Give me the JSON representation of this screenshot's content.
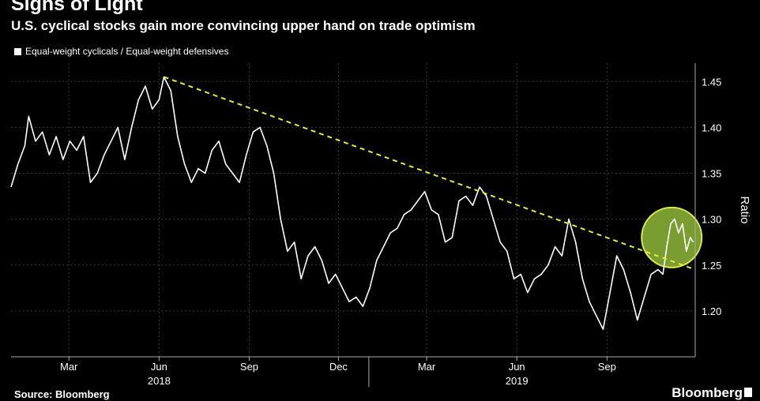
{
  "title": "Signs of Light",
  "subtitle": "U.S. cyclical stocks gain more convincing upper hand on trade optimism",
  "source": "Source: Bloomberg",
  "brand": "Bloomberg",
  "colors": {
    "background": "#000000",
    "series": "#ffffff",
    "trendline": "#e8e83a",
    "highlight_fill": "#8fb83a",
    "highlight_stroke": "#d8e84a"
  },
  "chart_data": {
    "type": "line",
    "ylabel": "Ratio",
    "xlabel": "",
    "ylim": [
      1.15,
      1.47
    ],
    "y_ticks": [
      1.2,
      1.25,
      1.3,
      1.35,
      1.4,
      1.45
    ],
    "y_tick_labels": [
      "1.20",
      "1.25",
      "1.30",
      "1.35",
      "1.40",
      "1.45"
    ],
    "grid": true,
    "legend_position": "top-left",
    "x_range": [
      "2018-01-01",
      "2019-11-30"
    ],
    "x_ticks": [
      {
        "date": "2018-03-01",
        "label": "Mar"
      },
      {
        "date": "2018-06-01",
        "label": "Jun"
      },
      {
        "date": "2018-09-01",
        "label": "Sep"
      },
      {
        "date": "2018-12-01",
        "label": "Dec"
      },
      {
        "date": "2019-03-01",
        "label": "Mar"
      },
      {
        "date": "2019-06-01",
        "label": "Jun"
      },
      {
        "date": "2019-09-01",
        "label": "Sep"
      }
    ],
    "year_labels": [
      {
        "date": "2018-06-01",
        "label": "2018"
      },
      {
        "date": "2019-06-01",
        "label": "2019"
      }
    ],
    "series": [
      {
        "name": "Equal-weight cyclicals / Equal-weight defensives",
        "points": [
          [
            "2018-01-01",
            1.335
          ],
          [
            "2018-01-08",
            1.36
          ],
          [
            "2018-01-15",
            1.38
          ],
          [
            "2018-01-19",
            1.412
          ],
          [
            "2018-01-26",
            1.385
          ],
          [
            "2018-02-02",
            1.395
          ],
          [
            "2018-02-09",
            1.37
          ],
          [
            "2018-02-16",
            1.39
          ],
          [
            "2018-02-23",
            1.365
          ],
          [
            "2018-03-02",
            1.385
          ],
          [
            "2018-03-09",
            1.375
          ],
          [
            "2018-03-16",
            1.39
          ],
          [
            "2018-03-23",
            1.34
          ],
          [
            "2018-03-30",
            1.35
          ],
          [
            "2018-04-06",
            1.37
          ],
          [
            "2018-04-13",
            1.385
          ],
          [
            "2018-04-20",
            1.4
          ],
          [
            "2018-04-27",
            1.365
          ],
          [
            "2018-05-04",
            1.4
          ],
          [
            "2018-05-11",
            1.43
          ],
          [
            "2018-05-18",
            1.445
          ],
          [
            "2018-05-25",
            1.42
          ],
          [
            "2018-06-01",
            1.43
          ],
          [
            "2018-06-06",
            1.455
          ],
          [
            "2018-06-13",
            1.44
          ],
          [
            "2018-06-20",
            1.39
          ],
          [
            "2018-06-27",
            1.36
          ],
          [
            "2018-07-04",
            1.34
          ],
          [
            "2018-07-11",
            1.355
          ],
          [
            "2018-07-18",
            1.35
          ],
          [
            "2018-07-25",
            1.375
          ],
          [
            "2018-08-01",
            1.385
          ],
          [
            "2018-08-08",
            1.36
          ],
          [
            "2018-08-15",
            1.35
          ],
          [
            "2018-08-22",
            1.34
          ],
          [
            "2018-08-29",
            1.37
          ],
          [
            "2018-09-05",
            1.395
          ],
          [
            "2018-09-12",
            1.4
          ],
          [
            "2018-09-19",
            1.38
          ],
          [
            "2018-09-26",
            1.35
          ],
          [
            "2018-10-03",
            1.3
          ],
          [
            "2018-10-10",
            1.265
          ],
          [
            "2018-10-17",
            1.275
          ],
          [
            "2018-10-24",
            1.235
          ],
          [
            "2018-10-31",
            1.26
          ],
          [
            "2018-11-07",
            1.27
          ],
          [
            "2018-11-14",
            1.255
          ],
          [
            "2018-11-21",
            1.23
          ],
          [
            "2018-11-28",
            1.24
          ],
          [
            "2018-12-05",
            1.225
          ],
          [
            "2018-12-12",
            1.21
          ],
          [
            "2018-12-19",
            1.215
          ],
          [
            "2018-12-26",
            1.205
          ],
          [
            "2019-01-02",
            1.225
          ],
          [
            "2019-01-09",
            1.255
          ],
          [
            "2019-01-16",
            1.27
          ],
          [
            "2019-01-23",
            1.285
          ],
          [
            "2019-01-30",
            1.29
          ],
          [
            "2019-02-06",
            1.305
          ],
          [
            "2019-02-13",
            1.31
          ],
          [
            "2019-02-20",
            1.32
          ],
          [
            "2019-02-27",
            1.33
          ],
          [
            "2019-03-06",
            1.31
          ],
          [
            "2019-03-13",
            1.305
          ],
          [
            "2019-03-20",
            1.275
          ],
          [
            "2019-03-27",
            1.28
          ],
          [
            "2019-04-03",
            1.32
          ],
          [
            "2019-04-10",
            1.325
          ],
          [
            "2019-04-17",
            1.315
          ],
          [
            "2019-04-24",
            1.335
          ],
          [
            "2019-05-01",
            1.325
          ],
          [
            "2019-05-08",
            1.3
          ],
          [
            "2019-05-15",
            1.275
          ],
          [
            "2019-05-22",
            1.265
          ],
          [
            "2019-05-29",
            1.235
          ],
          [
            "2019-06-05",
            1.24
          ],
          [
            "2019-06-12",
            1.22
          ],
          [
            "2019-06-19",
            1.235
          ],
          [
            "2019-06-26",
            1.24
          ],
          [
            "2019-07-03",
            1.25
          ],
          [
            "2019-07-10",
            1.27
          ],
          [
            "2019-07-17",
            1.26
          ],
          [
            "2019-07-24",
            1.3
          ],
          [
            "2019-07-31",
            1.275
          ],
          [
            "2019-08-07",
            1.235
          ],
          [
            "2019-08-14",
            1.21
          ],
          [
            "2019-08-21",
            1.195
          ],
          [
            "2019-08-28",
            1.18
          ],
          [
            "2019-09-04",
            1.22
          ],
          [
            "2019-09-11",
            1.26
          ],
          [
            "2019-09-18",
            1.245
          ],
          [
            "2019-09-25",
            1.22
          ],
          [
            "2019-10-02",
            1.19
          ],
          [
            "2019-10-09",
            1.215
          ],
          [
            "2019-10-16",
            1.24
          ],
          [
            "2019-10-23",
            1.245
          ],
          [
            "2019-10-28",
            1.24
          ],
          [
            "2019-11-01",
            1.27
          ],
          [
            "2019-11-05",
            1.295
          ],
          [
            "2019-11-09",
            1.3
          ],
          [
            "2019-11-13",
            1.285
          ],
          [
            "2019-11-17",
            1.295
          ],
          [
            "2019-11-21",
            1.265
          ],
          [
            "2019-11-25",
            1.28
          ],
          [
            "2019-11-28",
            1.275
          ]
        ]
      }
    ],
    "trendline": {
      "style": "dashed",
      "points": [
        [
          "2018-06-06",
          1.455
        ],
        [
          "2019-11-30",
          1.245
        ]
      ]
    },
    "highlight": {
      "shape": "circle",
      "center": [
        "2019-11-06",
        1.28
      ],
      "color": "#8fb83a"
    }
  }
}
